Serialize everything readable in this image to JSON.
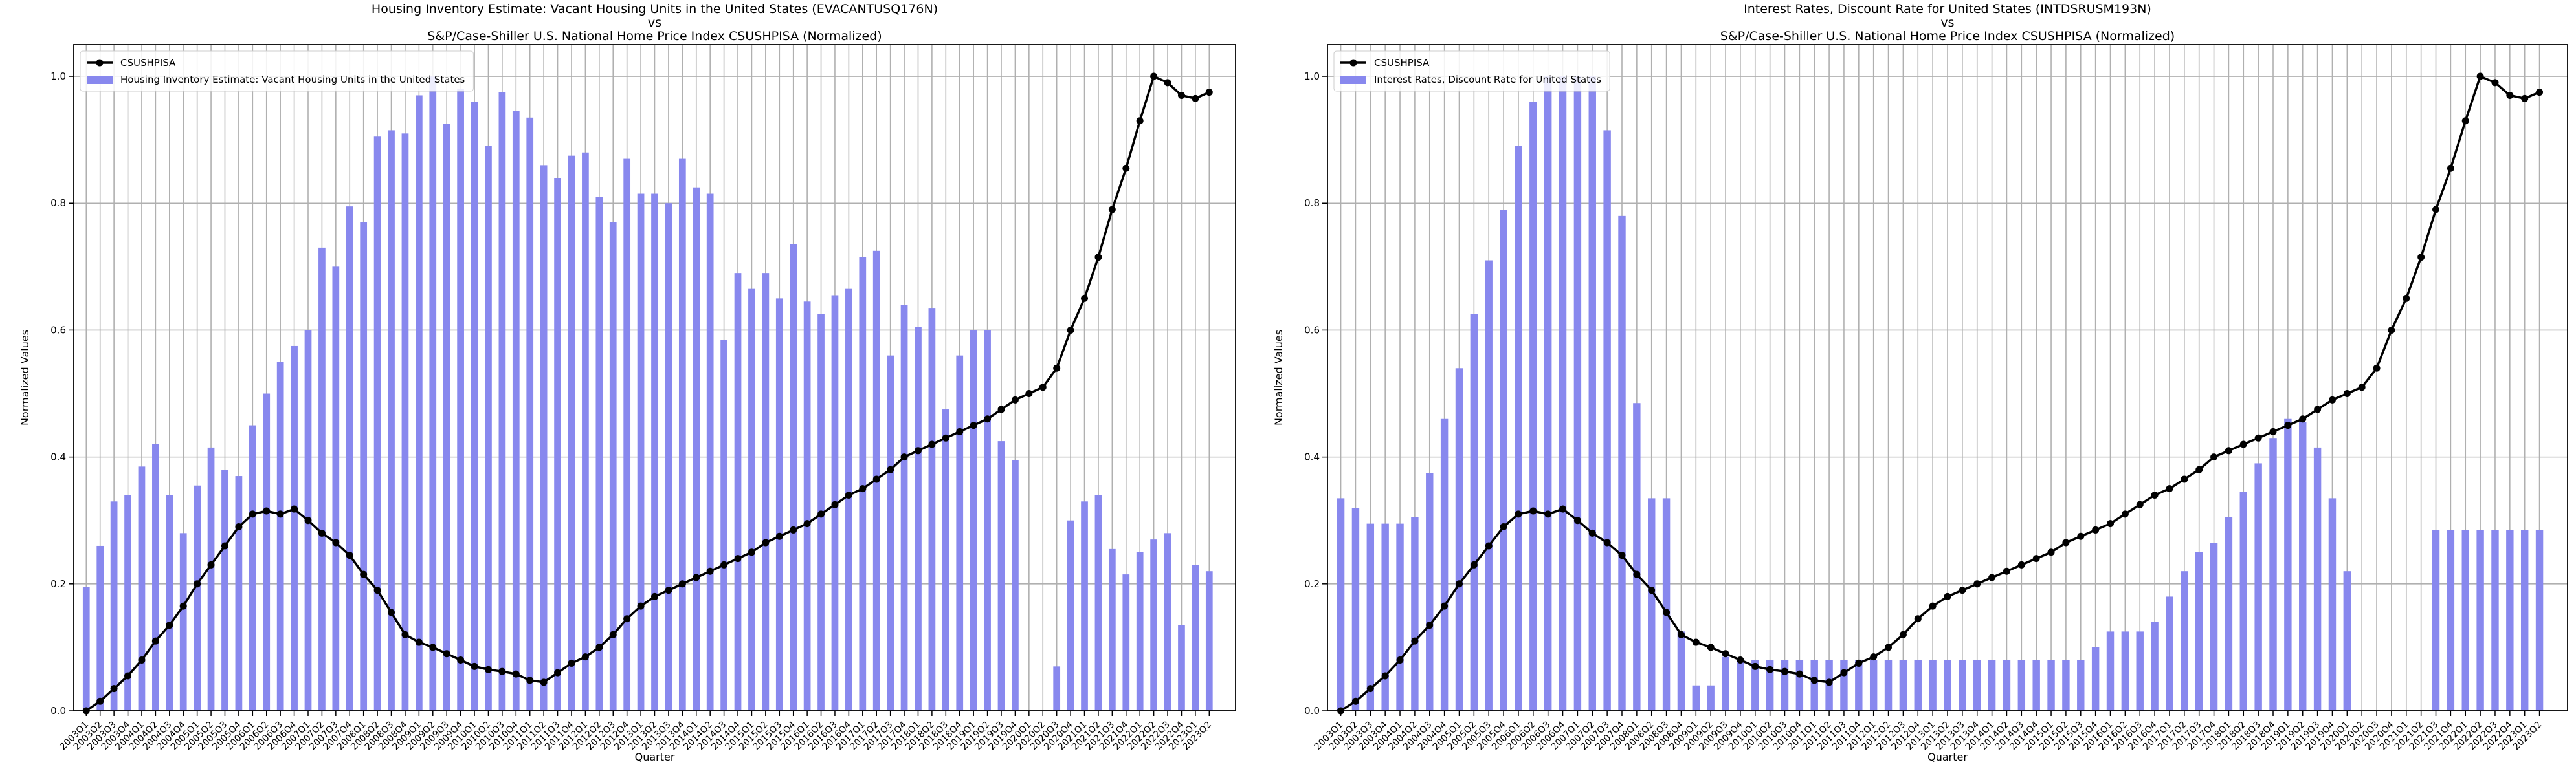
{
  "chart_data": [
    {
      "type": "bar",
      "title": [
        "Housing Inventory Estimate: Vacant Housing Units in the United States (EVACANTUSQ176N)",
        "vs",
        "S&P/Case-Shiller U.S. National Home Price Index CSUSHPISA (Normalized)"
      ],
      "x_label": "Quarter",
      "y_label": "Normalized Values",
      "categories": [
        "2003Q1",
        "2003Q2",
        "2003Q3",
        "2003Q4",
        "2004Q1",
        "2004Q2",
        "2004Q3",
        "2004Q4",
        "2005Q1",
        "2005Q2",
        "2005Q3",
        "2005Q4",
        "2006Q1",
        "2006Q2",
        "2006Q3",
        "2006Q4",
        "2007Q1",
        "2007Q2",
        "2007Q3",
        "2007Q4",
        "2008Q1",
        "2008Q2",
        "2008Q3",
        "2008Q4",
        "2009Q1",
        "2009Q2",
        "2009Q3",
        "2009Q4",
        "2010Q1",
        "2010Q2",
        "2010Q3",
        "2010Q4",
        "2011Q1",
        "2011Q2",
        "2011Q3",
        "2011Q4",
        "2012Q1",
        "2012Q2",
        "2012Q3",
        "2012Q4",
        "2013Q1",
        "2013Q2",
        "2013Q3",
        "2013Q4",
        "2014Q1",
        "2014Q2",
        "2014Q3",
        "2014Q4",
        "2015Q1",
        "2015Q2",
        "2015Q3",
        "2015Q4",
        "2016Q1",
        "2016Q2",
        "2016Q3",
        "2016Q4",
        "2017Q1",
        "2017Q2",
        "2017Q3",
        "2017Q4",
        "2018Q1",
        "2018Q2",
        "2018Q3",
        "2018Q4",
        "2019Q1",
        "2019Q2",
        "2019Q3",
        "2019Q4",
        "2020Q1",
        "2020Q2",
        "2020Q3",
        "2020Q4",
        "2021Q1",
        "2021Q2",
        "2021Q3",
        "2021Q4",
        "2022Q1",
        "2022Q2",
        "2022Q3",
        "2022Q4",
        "2023Q1",
        "2023Q2"
      ],
      "series": [
        {
          "name": "CSUSHPISA",
          "type": "line",
          "color": "#000000",
          "values": [
            0,
            0.015,
            0.035,
            0.055,
            0.08,
            0.11,
            0.135,
            0.165,
            0.2,
            0.23,
            0.26,
            0.29,
            0.31,
            0.315,
            0.31,
            0.318,
            0.3,
            0.28,
            0.265,
            0.245,
            0.215,
            0.19,
            0.155,
            0.12,
            0.108,
            0.1,
            0.09,
            0.08,
            0.07,
            0.065,
            0.062,
            0.058,
            0.048,
            0.045,
            0.06,
            0.075,
            0.085,
            0.1,
            0.12,
            0.145,
            0.165,
            0.18,
            0.19,
            0.2,
            0.21,
            0.22,
            0.23,
            0.24,
            0.25,
            0.265,
            0.275,
            0.285,
            0.295,
            0.31,
            0.325,
            0.34,
            0.35,
            0.365,
            0.38,
            0.4,
            0.41,
            0.42,
            0.43,
            0.44,
            0.45,
            0.46,
            0.475,
            0.49,
            0.5,
            0.51,
            0.54,
            0.6,
            0.65,
            0.715,
            0.79,
            0.855,
            0.93,
            1,
            0.99,
            0.97,
            0.965,
            0.975
          ]
        },
        {
          "name": "Housing Inventory Estimate: Vacant Housing Units in the United States",
          "type": "bar",
          "color": "#8888ee",
          "values": [
            0.195,
            0.26,
            0.33,
            0.34,
            0.385,
            0.42,
            0.34,
            0.28,
            0.355,
            0.415,
            0.38,
            0.37,
            0.45,
            0.5,
            0.55,
            0.575,
            0.6,
            0.73,
            0.7,
            0.795,
            0.77,
            0.905,
            0.915,
            0.91,
            0.97,
            1,
            0.925,
            0.98,
            0.96,
            0.89,
            0.975,
            0.945,
            0.935,
            0.86,
            0.84,
            0.875,
            0.88,
            0.81,
            0.77,
            0.87,
            0.815,
            0.815,
            0.8,
            0.87,
            0.825,
            0.815,
            0.585,
            0.69,
            0.665,
            0.69,
            0.65,
            0.735,
            0.645,
            0.625,
            0.655,
            0.665,
            0.715,
            0.725,
            0.56,
            0.64,
            0.605,
            0.635,
            0.475,
            0.56,
            0.6,
            0.6,
            0.425,
            0.395,
            null,
            null,
            0.07,
            0.3,
            0.33,
            0.34,
            0.255,
            0.215,
            0.25,
            0.27,
            0.28,
            0.135,
            0.23,
            0.22
          ]
        }
      ],
      "ylim": [
        0,
        1.05
      ],
      "yticks": [
        {
          "value": 0,
          "label": "0.0"
        },
        0.2,
        0.4,
        0.6,
        0.8,
        {
          "value": 1,
          "label": "1.0"
        }
      ],
      "grid": true,
      "legend": "upper left"
    },
    {
      "type": "bar",
      "title": [
        "Interest Rates, Discount Rate for United States (INTDSRUSM193N)",
        "vs",
        "S&P/Case-Shiller U.S. National Home Price Index CSUSHPISA (Normalized)"
      ],
      "x_label": "Quarter",
      "y_label": "Normalized Values",
      "categories": [
        "2003Q1",
        "2003Q2",
        "2003Q3",
        "2003Q4",
        "2004Q1",
        "2004Q2",
        "2004Q3",
        "2004Q4",
        "2005Q1",
        "2005Q2",
        "2005Q3",
        "2005Q4",
        "2006Q1",
        "2006Q2",
        "2006Q3",
        "2006Q4",
        "2007Q1",
        "2007Q2",
        "2007Q3",
        "2007Q4",
        "2008Q1",
        "2008Q2",
        "2008Q3",
        "2008Q4",
        "2009Q1",
        "2009Q2",
        "2009Q3",
        "2009Q4",
        "2010Q1",
        "2010Q2",
        "2010Q3",
        "2010Q4",
        "2011Q1",
        "2011Q2",
        "2011Q3",
        "2011Q4",
        "2012Q1",
        "2012Q2",
        "2012Q3",
        "2012Q4",
        "2013Q1",
        "2013Q2",
        "2013Q3",
        "2013Q4",
        "2014Q1",
        "2014Q2",
        "2014Q3",
        "2014Q4",
        "2015Q1",
        "2015Q2",
        "2015Q3",
        "2015Q4",
        "2016Q1",
        "2016Q2",
        "2016Q3",
        "2016Q4",
        "2017Q1",
        "2017Q2",
        "2017Q3",
        "2017Q4",
        "2018Q1",
        "2018Q2",
        "2018Q3",
        "2018Q4",
        "2019Q1",
        "2019Q2",
        "2019Q3",
        "2019Q4",
        "2020Q1",
        "2020Q2",
        "2020Q3",
        "2020Q4",
        "2021Q1",
        "2021Q2",
        "2021Q3",
        "2021Q4",
        "2022Q1",
        "2022Q2",
        "2022Q3",
        "2022Q4",
        "2023Q1",
        "2023Q2"
      ],
      "series": [
        {
          "name": "CSUSHPISA",
          "type": "line",
          "color": "#000000",
          "values": [
            0,
            0.015,
            0.035,
            0.055,
            0.08,
            0.11,
            0.135,
            0.165,
            0.2,
            0.23,
            0.26,
            0.29,
            0.31,
            0.315,
            0.31,
            0.318,
            0.3,
            0.28,
            0.265,
            0.245,
            0.215,
            0.19,
            0.155,
            0.12,
            0.108,
            0.1,
            0.09,
            0.08,
            0.07,
            0.065,
            0.062,
            0.058,
            0.048,
            0.045,
            0.06,
            0.075,
            0.085,
            0.1,
            0.12,
            0.145,
            0.165,
            0.18,
            0.19,
            0.2,
            0.21,
            0.22,
            0.23,
            0.24,
            0.25,
            0.265,
            0.275,
            0.285,
            0.295,
            0.31,
            0.325,
            0.34,
            0.35,
            0.365,
            0.38,
            0.4,
            0.41,
            0.42,
            0.43,
            0.44,
            0.45,
            0.46,
            0.475,
            0.49,
            0.5,
            0.51,
            0.54,
            0.6,
            0.65,
            0.715,
            0.79,
            0.855,
            0.93,
            1,
            0.99,
            0.97,
            0.965,
            0.975
          ]
        },
        {
          "name": "Interest Rates, Discount Rate for United States",
          "type": "bar",
          "color": "#8888ee",
          "values": [
            0.335,
            0.32,
            0.295,
            0.295,
            0.295,
            0.305,
            0.375,
            0.46,
            0.54,
            0.625,
            0.71,
            0.79,
            0.89,
            0.96,
            1,
            1,
            1,
            1,
            0.915,
            0.78,
            0.485,
            0.335,
            0.335,
            0.125,
            0.04,
            0.04,
            0.085,
            0.08,
            0.08,
            0.08,
            0.08,
            0.08,
            0.08,
            0.08,
            0.08,
            0.08,
            0.08,
            0.08,
            0.08,
            0.08,
            0.08,
            0.08,
            0.08,
            0.08,
            0.08,
            0.08,
            0.08,
            0.08,
            0.08,
            0.08,
            0.08,
            0.1,
            0.125,
            0.125,
            0.125,
            0.14,
            0.18,
            0.22,
            0.25,
            0.265,
            0.305,
            0.345,
            0.39,
            0.43,
            0.46,
            0.455,
            0.415,
            0.335,
            0.22,
            null,
            null,
            null,
            null,
            null,
            0.285,
            0.285,
            0.285,
            0.285,
            0.285,
            0.285,
            0.285,
            0.285
          ]
        }
      ],
      "ylim": [
        0,
        1.05
      ],
      "yticks": [
        {
          "value": 0,
          "label": "0.0"
        },
        0.2,
        0.4,
        0.6,
        0.8,
        {
          "value": 1,
          "label": "1.0"
        }
      ],
      "grid": true,
      "legend": "upper left"
    }
  ]
}
